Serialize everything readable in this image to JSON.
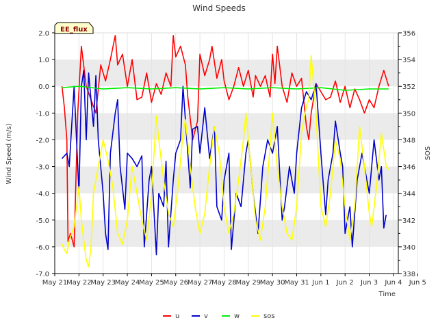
{
  "chart_data": {
    "type": "line",
    "title": "Wind Speeds",
    "xlabel": "Time",
    "ylabel": "Wind Speed (m/s)",
    "y2label": "SOS",
    "badge": "EE_flux",
    "x_ticks": [
      "May 21",
      "May 22",
      "May 23",
      "May 24",
      "May 25",
      "May 26",
      "May 27",
      "May 28",
      "May 29",
      "May 30",
      "May 31",
      "Jun 1",
      "Jun 2",
      "Jun 3",
      "Jun 4",
      "Jun 5"
    ],
    "xlim": [
      0,
      14.2
    ],
    "ylim": [
      -7,
      2
    ],
    "y_ticks": [
      "-7.0",
      "-6.0",
      "-5.0",
      "-4.0",
      "-3.0",
      "-2.0",
      "-1.0",
      "0.0",
      "1.0",
      "2.0"
    ],
    "y2lim": [
      338,
      356
    ],
    "y2_ticks": [
      "338",
      "340",
      "342",
      "344",
      "346",
      "348",
      "350",
      "352",
      "354",
      "356"
    ],
    "legend": [
      "u",
      "v",
      "w",
      "sos"
    ],
    "colors": {
      "u": "#ff0000",
      "v": "#0000cc",
      "w": "#00ee00",
      "sos": "#ffff00",
      "band": "#ebebeb",
      "badge_bg": "#ffffcc",
      "badge_text": "#8b0000"
    },
    "series": [
      {
        "name": "u",
        "axis": "left",
        "points": [
          [
            0.3,
            0.0
          ],
          [
            0.4,
            -0.8
          ],
          [
            0.5,
            -2.0
          ],
          [
            0.55,
            -5.8
          ],
          [
            0.65,
            -5.5
          ],
          [
            0.8,
            -6.0
          ],
          [
            0.95,
            -1.0
          ],
          [
            1.1,
            1.5
          ],
          [
            1.3,
            0.0
          ],
          [
            1.5,
            -0.5
          ],
          [
            1.7,
            -1.0
          ],
          [
            1.9,
            0.8
          ],
          [
            2.1,
            0.2
          ],
          [
            2.3,
            1.0
          ],
          [
            2.5,
            1.9
          ],
          [
            2.6,
            0.8
          ],
          [
            2.8,
            1.2
          ],
          [
            3.0,
            0.0
          ],
          [
            3.2,
            1.0
          ],
          [
            3.4,
            -0.5
          ],
          [
            3.6,
            -0.4
          ],
          [
            3.8,
            0.5
          ],
          [
            4.0,
            -0.6
          ],
          [
            4.2,
            0.1
          ],
          [
            4.4,
            -0.3
          ],
          [
            4.6,
            0.5
          ],
          [
            4.8,
            0.0
          ],
          [
            4.9,
            1.9
          ],
          [
            5.0,
            1.1
          ],
          [
            5.2,
            1.5
          ],
          [
            5.4,
            0.8
          ],
          [
            5.5,
            -0.4
          ],
          [
            5.7,
            -2.0
          ],
          [
            5.9,
            -1.3
          ],
          [
            6.0,
            1.2
          ],
          [
            6.2,
            0.4
          ],
          [
            6.4,
            1.0
          ],
          [
            6.5,
            1.5
          ],
          [
            6.7,
            0.3
          ],
          [
            6.9,
            1.0
          ],
          [
            7.0,
            0.2
          ],
          [
            7.2,
            -0.5
          ],
          [
            7.4,
            0.0
          ],
          [
            7.6,
            0.7
          ],
          [
            7.8,
            0.0
          ],
          [
            8.0,
            0.6
          ],
          [
            8.2,
            -0.4
          ],
          [
            8.3,
            0.4
          ],
          [
            8.5,
            0.0
          ],
          [
            8.7,
            0.4
          ],
          [
            8.9,
            -0.4
          ],
          [
            9.0,
            1.2
          ],
          [
            9.1,
            0.1
          ],
          [
            9.2,
            1.5
          ],
          [
            9.4,
            0.0
          ],
          [
            9.6,
            -0.6
          ],
          [
            9.8,
            0.5
          ],
          [
            10.0,
            0.0
          ],
          [
            10.2,
            0.3
          ],
          [
            10.4,
            -1.5
          ],
          [
            10.5,
            -2.0
          ],
          [
            10.6,
            -1.0
          ],
          [
            10.8,
            0.1
          ],
          [
            11.0,
            -0.2
          ],
          [
            11.2,
            -0.5
          ],
          [
            11.4,
            -0.4
          ],
          [
            11.6,
            0.2
          ],
          [
            11.8,
            -0.6
          ],
          [
            12.0,
            0.0
          ],
          [
            12.2,
            -0.8
          ],
          [
            12.4,
            -0.1
          ],
          [
            12.6,
            -0.5
          ],
          [
            12.8,
            -1.0
          ],
          [
            13.0,
            -0.5
          ],
          [
            13.2,
            -0.8
          ],
          [
            13.4,
            0.0
          ],
          [
            13.6,
            0.6
          ],
          [
            13.8,
            0.0
          ]
        ]
      },
      {
        "name": "v",
        "axis": "left",
        "points": [
          [
            0.3,
            -2.7
          ],
          [
            0.5,
            -2.5
          ],
          [
            0.6,
            -3.0
          ],
          [
            0.7,
            -1.5
          ],
          [
            0.8,
            0.0
          ],
          [
            0.9,
            -2.0
          ],
          [
            1.0,
            -4.0
          ],
          [
            1.1,
            0.0
          ],
          [
            1.2,
            0.6
          ],
          [
            1.3,
            -2.0
          ],
          [
            1.4,
            0.5
          ],
          [
            1.5,
            -0.5
          ],
          [
            1.6,
            -1.5
          ],
          [
            1.7,
            0.4
          ],
          [
            1.8,
            -2.0
          ],
          [
            2.0,
            -4.0
          ],
          [
            2.1,
            -5.5
          ],
          [
            2.2,
            -6.1
          ],
          [
            2.3,
            -2.5
          ],
          [
            2.5,
            -1.0
          ],
          [
            2.6,
            -0.5
          ],
          [
            2.7,
            -3.0
          ],
          [
            2.9,
            -4.6
          ],
          [
            3.0,
            -2.5
          ],
          [
            3.2,
            -2.7
          ],
          [
            3.4,
            -3.0
          ],
          [
            3.6,
            -2.6
          ],
          [
            3.7,
            -6.0
          ],
          [
            3.9,
            -3.5
          ],
          [
            4.0,
            -3.0
          ],
          [
            4.2,
            -6.3
          ],
          [
            4.3,
            -4.0
          ],
          [
            4.5,
            -4.5
          ],
          [
            4.6,
            -2.8
          ],
          [
            4.7,
            -6.0
          ],
          [
            4.9,
            -3.5
          ],
          [
            5.0,
            -2.5
          ],
          [
            5.2,
            -2.0
          ],
          [
            5.3,
            0.0
          ],
          [
            5.5,
            -2.5
          ],
          [
            5.6,
            -3.8
          ],
          [
            5.7,
            -1.6
          ],
          [
            5.9,
            -1.5
          ],
          [
            6.0,
            -2.5
          ],
          [
            6.2,
            -0.8
          ],
          [
            6.4,
            -2.7
          ],
          [
            6.6,
            -1.5
          ],
          [
            6.7,
            -4.5
          ],
          [
            6.9,
            -5.0
          ],
          [
            7.0,
            -3.5
          ],
          [
            7.2,
            -2.5
          ],
          [
            7.3,
            -6.1
          ],
          [
            7.5,
            -4.0
          ],
          [
            7.7,
            -4.5
          ],
          [
            7.9,
            -2.5
          ],
          [
            8.0,
            -2.0
          ],
          [
            8.2,
            -4.0
          ],
          [
            8.4,
            -5.5
          ],
          [
            8.6,
            -3.0
          ],
          [
            8.8,
            -2.0
          ],
          [
            9.0,
            -2.5
          ],
          [
            9.2,
            -1.5
          ],
          [
            9.4,
            -5.0
          ],
          [
            9.5,
            -4.5
          ],
          [
            9.7,
            -3.0
          ],
          [
            9.9,
            -4.0
          ],
          [
            10.0,
            -2.5
          ],
          [
            10.2,
            -0.8
          ],
          [
            10.4,
            -0.2
          ],
          [
            10.6,
            -0.5
          ],
          [
            10.8,
            0.1
          ],
          [
            11.0,
            -2.5
          ],
          [
            11.2,
            -4.8
          ],
          [
            11.3,
            -3.5
          ],
          [
            11.5,
            -2.5
          ],
          [
            11.6,
            -1.3
          ],
          [
            11.8,
            -2.5
          ],
          [
            11.9,
            -3.0
          ],
          [
            12.0,
            -5.5
          ],
          [
            12.2,
            -4.5
          ],
          [
            12.3,
            -6.0
          ],
          [
            12.5,
            -3.5
          ],
          [
            12.7,
            -2.5
          ],
          [
            12.9,
            -3.5
          ],
          [
            13.0,
            -4.0
          ],
          [
            13.2,
            -2.0
          ],
          [
            13.4,
            -3.5
          ],
          [
            13.5,
            -3.0
          ],
          [
            13.6,
            -5.3
          ],
          [
            13.7,
            -4.8
          ]
        ]
      },
      {
        "name": "w",
        "axis": "left",
        "points": [
          [
            0.3,
            -0.05
          ],
          [
            1.0,
            0.0
          ],
          [
            2.0,
            -0.1
          ],
          [
            3.0,
            -0.05
          ],
          [
            4.0,
            -0.1
          ],
          [
            5.0,
            -0.05
          ],
          [
            6.0,
            -0.1
          ],
          [
            7.0,
            -0.05
          ],
          [
            8.0,
            -0.1
          ],
          [
            9.0,
            -0.05
          ],
          [
            10.0,
            -0.1
          ],
          [
            11.0,
            -0.05
          ],
          [
            12.0,
            -0.15
          ],
          [
            13.0,
            -0.1
          ],
          [
            13.8,
            -0.1
          ]
        ]
      },
      {
        "name": "sos",
        "axis": "right",
        "points": [
          [
            0.3,
            340.2
          ],
          [
            0.4,
            339.8
          ],
          [
            0.5,
            339.5
          ],
          [
            0.6,
            340.5
          ],
          [
            0.8,
            341.5
          ],
          [
            1.0,
            344.5
          ],
          [
            1.1,
            342.0
          ],
          [
            1.2,
            340.5
          ],
          [
            1.3,
            339.0
          ],
          [
            1.4,
            338.5
          ],
          [
            1.5,
            340.0
          ],
          [
            1.6,
            344.0
          ],
          [
            1.8,
            346.0
          ],
          [
            2.0,
            348.0
          ],
          [
            2.2,
            346.5
          ],
          [
            2.4,
            344.5
          ],
          [
            2.6,
            341.0
          ],
          [
            2.8,
            340.2
          ],
          [
            3.0,
            342.0
          ],
          [
            3.2,
            346.0
          ],
          [
            3.4,
            344.0
          ],
          [
            3.6,
            342.0
          ],
          [
            3.8,
            340.5
          ],
          [
            4.0,
            344.0
          ],
          [
            4.2,
            349.8
          ],
          [
            4.3,
            348.0
          ],
          [
            4.5,
            345.0
          ],
          [
            4.7,
            342.5
          ],
          [
            4.9,
            341.5
          ],
          [
            5.1,
            344.5
          ],
          [
            5.3,
            348.5
          ],
          [
            5.4,
            349.5
          ],
          [
            5.6,
            346.0
          ],
          [
            5.8,
            343.0
          ],
          [
            6.0,
            341.0
          ],
          [
            6.2,
            342.5
          ],
          [
            6.4,
            346.0
          ],
          [
            6.6,
            349.0
          ],
          [
            6.8,
            347.0
          ],
          [
            7.0,
            343.0
          ],
          [
            7.2,
            341.0
          ],
          [
            7.4,
            342.5
          ],
          [
            7.6,
            345.0
          ],
          [
            7.8,
            348.0
          ],
          [
            7.9,
            350.0
          ],
          [
            8.1,
            346.0
          ],
          [
            8.3,
            342.0
          ],
          [
            8.5,
            340.5
          ],
          [
            8.7,
            343.0
          ],
          [
            8.9,
            347.5
          ],
          [
            9.0,
            350.0
          ],
          [
            9.2,
            346.0
          ],
          [
            9.4,
            343.0
          ],
          [
            9.6,
            341.0
          ],
          [
            9.8,
            340.5
          ],
          [
            10.0,
            343.0
          ],
          [
            10.2,
            348.5
          ],
          [
            10.4,
            350.5
          ],
          [
            10.5,
            351.0
          ],
          [
            10.6,
            354.3
          ],
          [
            10.8,
            350.0
          ],
          [
            11.0,
            343.0
          ],
          [
            11.2,
            341.5
          ],
          [
            11.4,
            344.0
          ],
          [
            11.6,
            348.0
          ],
          [
            11.8,
            346.5
          ],
          [
            12.0,
            343.0
          ],
          [
            12.2,
            340.5
          ],
          [
            12.4,
            343.0
          ],
          [
            12.6,
            349.0
          ],
          [
            12.8,
            346.0
          ],
          [
            13.0,
            342.5
          ],
          [
            13.1,
            341.5
          ],
          [
            13.3,
            344.5
          ],
          [
            13.5,
            348.5
          ],
          [
            13.7,
            346.0
          ],
          [
            13.8,
            345.8
          ]
        ]
      }
    ]
  }
}
